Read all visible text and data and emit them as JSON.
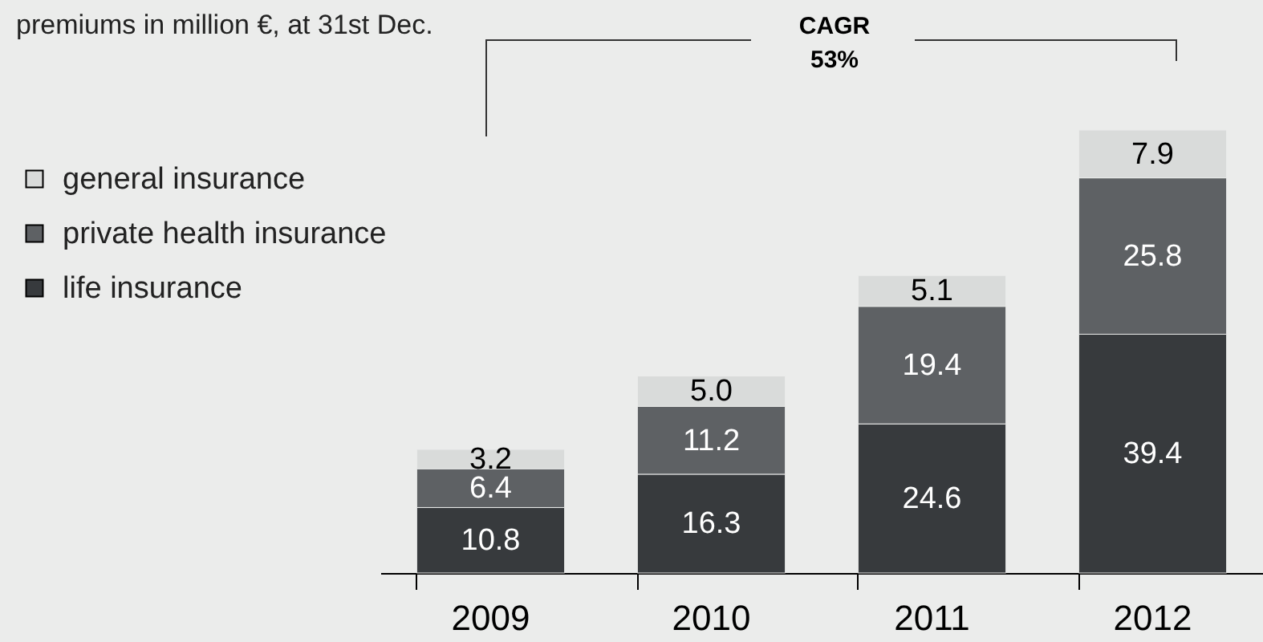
{
  "chart_data": {
    "type": "bar",
    "title": "premiums in million €, at 31st Dec.",
    "categories": [
      "2009",
      "2010",
      "2011",
      "2012"
    ],
    "stacked": true,
    "legend": "left",
    "grid": false,
    "series": [
      {
        "name": "life insurance",
        "color": "#373a3d",
        "values": [
          10.8,
          16.3,
          24.6,
          39.4
        ],
        "value_labels": [
          "10.8",
          "16.3",
          "24.6",
          "39.4"
        ]
      },
      {
        "name": "private health insurance",
        "color": "#5e6164",
        "values": [
          6.4,
          11.2,
          19.4,
          25.8
        ],
        "value_labels": [
          "6.4",
          "11.2",
          "19.4",
          "25.8"
        ]
      },
      {
        "name": "general insurance",
        "color": "#d9dbda",
        "values": [
          3.2,
          5.0,
          5.1,
          7.9
        ],
        "value_labels": [
          "3.2",
          "5.0",
          "5.1",
          "7.9"
        ]
      }
    ],
    "annotations": [
      "CAGR\n53%"
    ]
  }
}
